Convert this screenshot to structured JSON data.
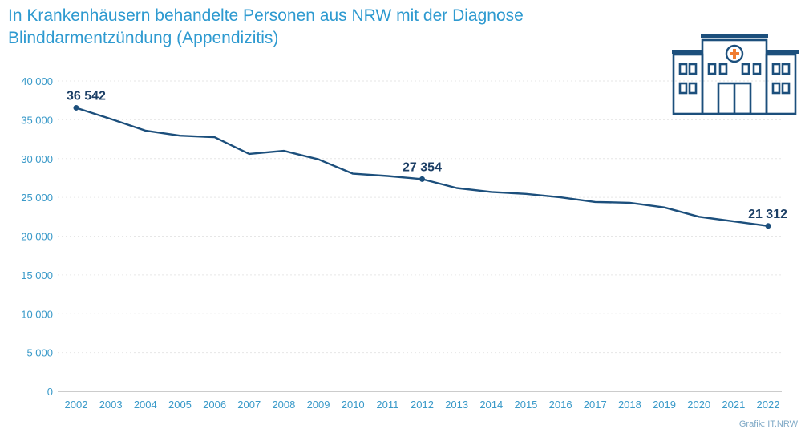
{
  "title": "In Krankenhäusern behandelte Personen aus NRW mit der Diagnose Blinddarmentzündung (Appendizitis)",
  "source": "Grafik: IT.NRW",
  "icon": "hospital-icon",
  "colors": {
    "line": "#1c4f7c",
    "title": "#2e9ad0",
    "ticks": "#3a9ac9",
    "label": "#1c3f66",
    "icon": "#1c4f7c",
    "cross": "#f07d32"
  },
  "chart_data": {
    "type": "line",
    "x": [
      2002,
      2003,
      2004,
      2005,
      2006,
      2007,
      2008,
      2009,
      2010,
      2011,
      2012,
      2013,
      2014,
      2015,
      2016,
      2017,
      2018,
      2019,
      2020,
      2021,
      2022
    ],
    "values": [
      36542,
      35100,
      33600,
      32950,
      32750,
      30600,
      31000,
      29900,
      28050,
      27750,
      27354,
      26200,
      25700,
      25450,
      25000,
      24400,
      24300,
      23700,
      22500,
      21900,
      21312
    ],
    "ylim": [
      0,
      40000
    ],
    "yticks": [
      0,
      5000,
      10000,
      15000,
      20000,
      25000,
      30000,
      35000,
      40000
    ],
    "ytick_labels": [
      "0",
      "5 000",
      "10 000",
      "15 000",
      "20 000",
      "25 000",
      "30 000",
      "35 000",
      "40 000"
    ],
    "annotations": [
      {
        "year": 2002,
        "text": "36 542"
      },
      {
        "year": 2012,
        "text": "27 354"
      },
      {
        "year": 2022,
        "text": "21 312"
      }
    ],
    "grid": true
  }
}
